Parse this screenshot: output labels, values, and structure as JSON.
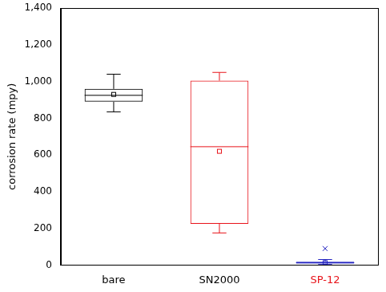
{
  "chart_data": {
    "type": "box",
    "y_label": "corrosion rate (mpy)",
    "categories": [
      "bare",
      "SN2000",
      "SP-12"
    ],
    "colors": [
      "#000000",
      "#e8141b",
      "#1f1fbf"
    ],
    "stats": [
      {
        "min": 835,
        "q1": 890,
        "median": 925,
        "q3": 960,
        "max": 1040,
        "mean": 930,
        "outliers": []
      },
      {
        "min": 175,
        "q1": 225,
        "median": 645,
        "q3": 1005,
        "max": 1050,
        "mean": 620,
        "outliers": []
      },
      {
        "min": 3,
        "q1": 8,
        "median": 12,
        "q3": 18,
        "max": 30,
        "mean": 13,
        "outliers": [
          90
        ]
      }
    ],
    "ylim": [
      0,
      1400
    ],
    "yticks": [
      0,
      200,
      400,
      600,
      800,
      1000,
      1200,
      1400
    ],
    "grid": false
  }
}
